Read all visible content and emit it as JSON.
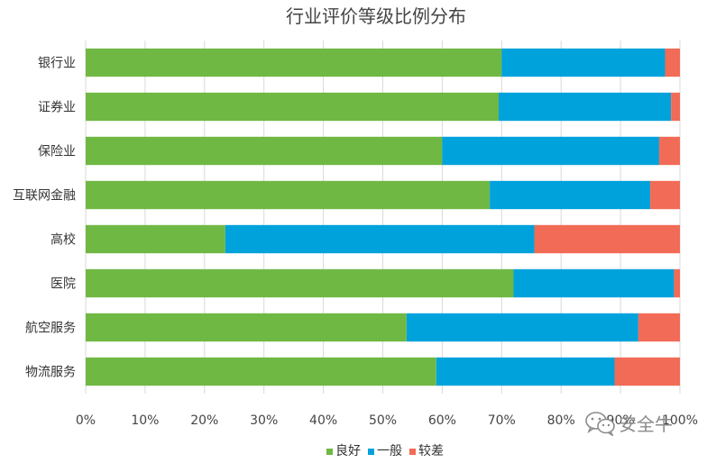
{
  "chart_data": {
    "type": "bar",
    "orientation": "horizontal",
    "stacked": "percent",
    "title": "行业评价等级比例分布",
    "categories": [
      "银行业",
      "证券业",
      "保险业",
      "互联网金融",
      "高校",
      "医院",
      "航空服务",
      "物流服务"
    ],
    "series": [
      {
        "name": "良好",
        "color": "#70b844",
        "values": [
          70,
          69.5,
          60,
          68,
          23.5,
          72,
          54,
          59
        ]
      },
      {
        "name": "一般",
        "color": "#00a2dc",
        "values": [
          27.5,
          29,
          36.5,
          27,
          52,
          27,
          39,
          30
        ]
      },
      {
        "name": "较差",
        "color": "#f26b56",
        "values": [
          2.5,
          1.5,
          3.5,
          5,
          24.5,
          1,
          7,
          11
        ]
      }
    ],
    "xlim": [
      0,
      100
    ],
    "xticks": [
      "0%",
      "10%",
      "20%",
      "30%",
      "40%",
      "50%",
      "60%",
      "70%",
      "80%",
      "90%",
      "100%"
    ],
    "grid": "vertical",
    "legend": "bottom"
  },
  "watermark": {
    "text": "安全牛",
    "icon": "wechat-icon"
  }
}
